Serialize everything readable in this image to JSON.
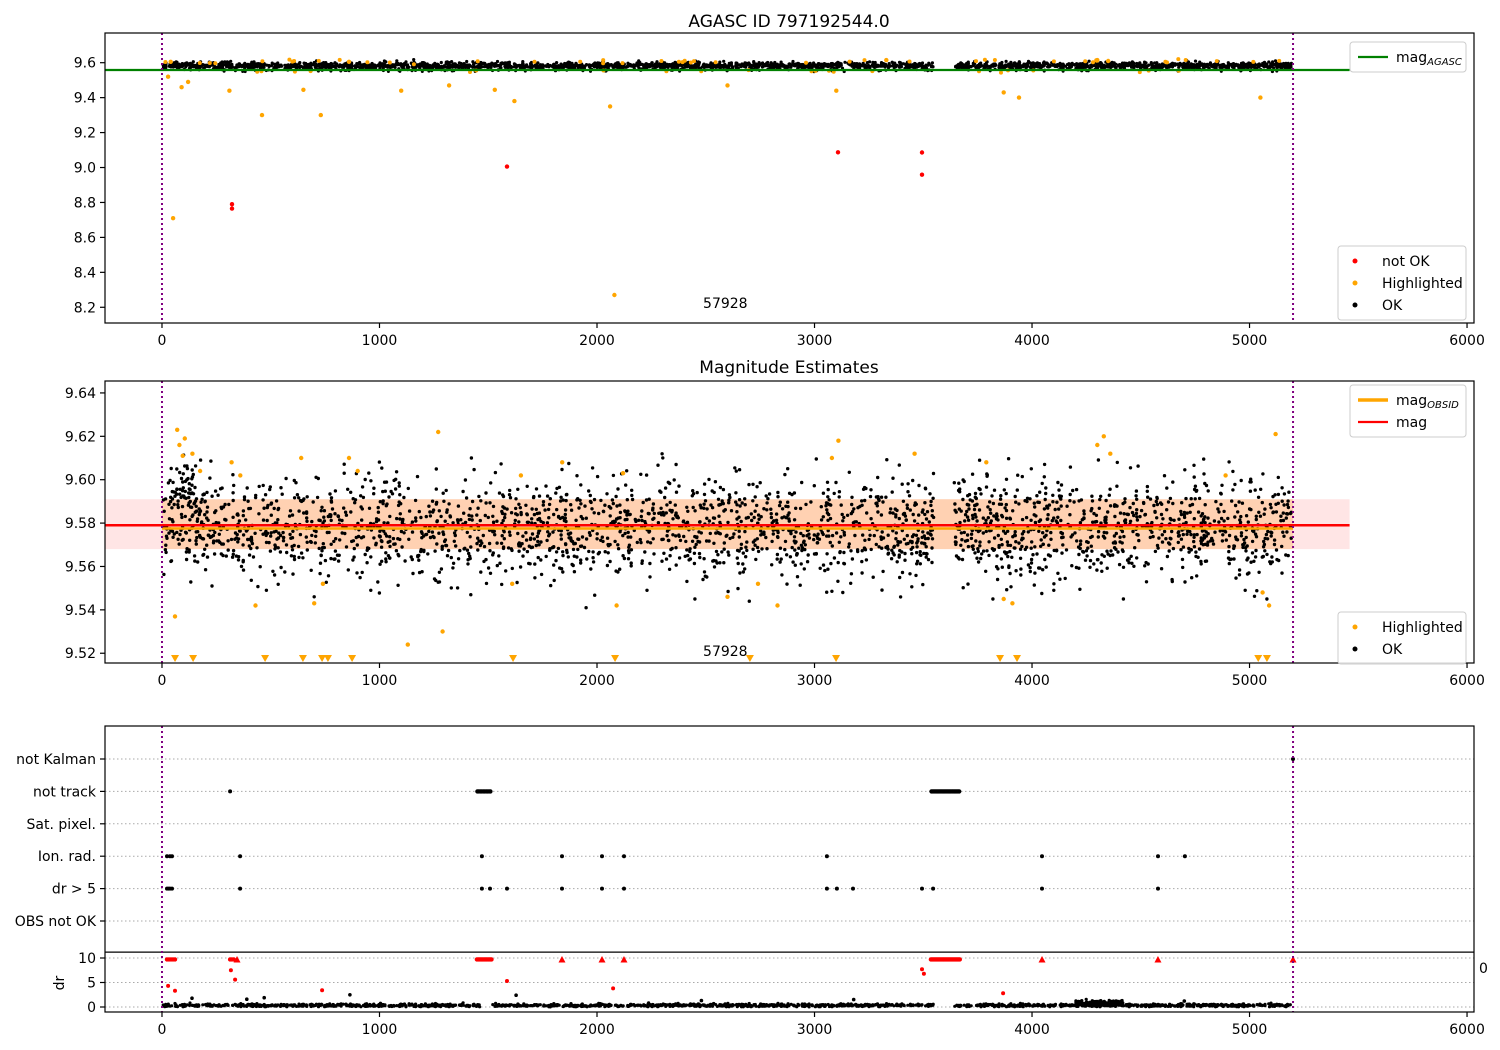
{
  "figure_title": "AGASC ID 797192544.0",
  "colors": {
    "ok": "#000000",
    "highlighted": "#ffa500",
    "not_ok": "#ff0000",
    "mag_agasc_line": "#008000",
    "mag_line": "#ff0000",
    "obsid_line": "#ffa500",
    "err_band_pink": "rgba(255,0,0,0.10)",
    "err_band_salmon": "rgba(255,140,0,0.22)",
    "vline": "#800080",
    "grid": "#aaaaaa",
    "spine": "#000000",
    "legend_border": "#cccccc"
  },
  "chart_data": [
    {
      "type": "scatter",
      "title": "AGASC ID 797192544.0",
      "xlim": [
        -262,
        6032
      ],
      "ylim": [
        8.11,
        9.77
      ],
      "xticks": [
        0,
        1000,
        2000,
        3000,
        4000,
        5000,
        6000
      ],
      "xtick_labels": [
        "0",
        "1000",
        "2000",
        "3000",
        "4000",
        "5000",
        "6000"
      ],
      "yticks": [
        8.2,
        8.4,
        8.6,
        8.8,
        9.0,
        9.2,
        9.4,
        9.6
      ],
      "ytick_labels": [
        "8.2",
        "8.4",
        "8.6",
        "8.8",
        "9.0",
        "9.2",
        "9.4",
        "9.6"
      ],
      "vlines": [
        0,
        5200
      ],
      "hlines": [
        {
          "y": 9.558,
          "x0": -262,
          "x1": 5460,
          "color_key": "mag_agasc_line",
          "width": 2.2
        }
      ],
      "clouds": [
        {
          "ranges": [
            [
              5,
              3548
            ],
            [
              3642,
              5193
            ]
          ],
          "n": 2400,
          "mean": 9.583,
          "sigma": 0.01,
          "clip": [
            9.549,
            9.625
          ],
          "color_key": "ok",
          "r": 1.6
        },
        {
          "ranges": [
            [
              5,
              3548
            ],
            [
              3642,
              5193
            ]
          ],
          "n": 90,
          "mean": 9.5545,
          "sigma": 0.0035,
          "clip": [
            9.545,
            9.562
          ],
          "color_key": "ok",
          "r": 1.5
        },
        {
          "ranges": [
            [
              5,
              3548
            ],
            [
              3642,
              5193
            ]
          ],
          "n": 45,
          "mean": 9.606,
          "sigma": 0.007,
          "clip": [
            9.59,
            9.625
          ],
          "color_key": "highlighted",
          "r": 2.0
        },
        {
          "ranges": [
            [
              5,
              3548
            ],
            [
              3642,
              5193
            ]
          ],
          "n": 22,
          "mean": 9.552,
          "sigma": 0.004,
          "clip": [
            9.542,
            9.561
          ],
          "color_key": "highlighted",
          "r": 2.0
        }
      ],
      "points": [
        {
          "color_key": "highlighted",
          "r": 2.2,
          "xy": [
            [
              28,
              9.52
            ],
            [
              40,
              9.605
            ],
            [
              51,
              8.71
            ],
            [
              90,
              9.46
            ],
            [
              120,
              9.49
            ],
            [
              310,
              9.44
            ],
            [
              460,
              9.3
            ],
            [
              650,
              9.445
            ],
            [
              730,
              9.3
            ],
            [
              860,
              9.605
            ],
            [
              1100,
              9.44
            ],
            [
              1320,
              9.47
            ],
            [
              1530,
              9.445
            ],
            [
              1620,
              9.38
            ],
            [
              2060,
              9.35
            ],
            [
              2080,
              8.27
            ],
            [
              2600,
              9.47
            ],
            [
              3100,
              9.44
            ],
            [
              3330,
              9.615
            ],
            [
              3870,
              9.43
            ],
            [
              3940,
              9.4
            ],
            [
              4300,
              9.615
            ],
            [
              4350,
              9.61
            ],
            [
              5050,
              9.4
            ]
          ]
        },
        {
          "color_key": "not_ok",
          "r": 2.2,
          "xy": [
            [
              322,
              8.79
            ],
            [
              322,
              8.765
            ],
            [
              1586,
              9.005
            ],
            [
              3108,
              9.087
            ],
            [
              3494,
              9.086
            ],
            [
              3494,
              8.959
            ]
          ]
        }
      ],
      "annotation": {
        "text": "57928",
        "x": 2590,
        "y": 8.218
      },
      "legends": [
        {
          "entries": [
            {
              "kind": "line",
              "color_key": "mag_agasc_line",
              "lw": 2.2,
              "main": "mag",
              "sub": "AGASC"
            }
          ]
        },
        {
          "entries": [
            {
              "kind": "dot",
              "color_key": "not_ok",
              "main": "not OK",
              "sub": ""
            },
            {
              "kind": "dot",
              "color_key": "highlighted",
              "main": "Highlighted",
              "sub": ""
            },
            {
              "kind": "dot",
              "color_key": "ok",
              "main": "OK",
              "sub": ""
            }
          ]
        }
      ]
    },
    {
      "type": "scatter",
      "title": "Magnitude Estimates",
      "xlim": [
        -262,
        6032
      ],
      "ylim": [
        9.5155,
        9.6455
      ],
      "xticks": [
        0,
        1000,
        2000,
        3000,
        4000,
        5000,
        6000
      ],
      "xtick_labels": [
        "0",
        "1000",
        "2000",
        "3000",
        "4000",
        "5000",
        "6000"
      ],
      "yticks": [
        9.52,
        9.54,
        9.56,
        9.58,
        9.6,
        9.62,
        9.64
      ],
      "ytick_labels": [
        "9.52",
        "9.54",
        "9.56",
        "9.58",
        "9.60",
        "9.62",
        "9.64"
      ],
      "vlines": [
        0,
        5200
      ],
      "bands": [
        {
          "x0": -262,
          "x1": 5460,
          "y0": 9.568,
          "y1": 9.591,
          "color_key": "err_band_pink"
        },
        {
          "x0": 0,
          "x1": 5200,
          "y0": 9.568,
          "y1": 9.591,
          "color_key": "err_band_salmon"
        }
      ],
      "hlines": [
        {
          "y": 9.5775,
          "x0": 0,
          "x1": 5200,
          "color_key": "obsid_line",
          "width": 2.5
        },
        {
          "y": 9.579,
          "x0": -262,
          "x1": 5460,
          "color_key": "mag_line",
          "width": 2.5
        }
      ],
      "clouds": [
        {
          "ranges": [
            [
              5,
              3548
            ],
            [
              3642,
              5193
            ]
          ],
          "n": 2600,
          "mean": 9.578,
          "sigma": 0.0115,
          "clip": [
            9.5455,
            9.6125
          ],
          "color_key": "ok",
          "r": 1.7
        },
        {
          "ranges": [
            [
              30,
              200
            ]
          ],
          "n": 60,
          "mean": 9.594,
          "sigma": 0.008,
          "clip": [
            9.57,
            9.612
          ],
          "color_key": "ok",
          "r": 1.7
        }
      ],
      "points": [
        {
          "color_key": "ok",
          "r": 1.7,
          "xy": [
            [
              230,
              9.551
            ],
            [
              480,
              9.549
            ],
            [
              700,
              9.546
            ],
            [
              960,
              9.549
            ],
            [
              1420,
              9.547
            ],
            [
              1950,
              9.541
            ],
            [
              2230,
              9.549
            ],
            [
              2450,
              9.545
            ],
            [
              2700,
              9.544
            ],
            [
              3130,
              9.548
            ],
            [
              3820,
              9.545
            ],
            [
              4100,
              9.549
            ],
            [
              4420,
              9.545
            ],
            [
              4980,
              9.549
            ],
            [
              5080,
              9.545
            ]
          ]
        },
        {
          "color_key": "highlighted",
          "r": 2.2,
          "xy": [
            [
              60,
              9.537
            ],
            [
              70,
              9.623
            ],
            [
              80,
              9.616
            ],
            [
              95,
              9.611
            ],
            [
              105,
              9.619
            ],
            [
              140,
              9.612
            ],
            [
              175,
              9.604
            ],
            [
              320,
              9.608
            ],
            [
              360,
              9.602
            ],
            [
              430,
              9.542
            ],
            [
              640,
              9.61
            ],
            [
              700,
              9.543
            ],
            [
              740,
              9.552
            ],
            [
              860,
              9.61
            ],
            [
              900,
              9.604
            ],
            [
              1130,
              9.524
            ],
            [
              1270,
              9.622
            ],
            [
              1290,
              9.53
            ],
            [
              1610,
              9.552
            ],
            [
              1650,
              9.602
            ],
            [
              1840,
              9.608
            ],
            [
              2090,
              9.542
            ],
            [
              2120,
              9.603
            ],
            [
              2600,
              9.546
            ],
            [
              2740,
              9.552
            ],
            [
              2830,
              9.542
            ],
            [
              3080,
              9.61
            ],
            [
              3110,
              9.618
            ],
            [
              3460,
              9.612
            ],
            [
              3790,
              9.608
            ],
            [
              3870,
              9.545
            ],
            [
              3910,
              9.543
            ],
            [
              4300,
              9.616
            ],
            [
              4330,
              9.62
            ],
            [
              4360,
              9.612
            ],
            [
              4890,
              9.602
            ],
            [
              5060,
              9.548
            ],
            [
              5090,
              9.542
            ],
            [
              5120,
              9.621
            ]
          ]
        }
      ],
      "clip_markers": {
        "color_key": "highlighted",
        "xs": [
          60,
          143,
          474,
          648,
          736,
          763,
          874,
          1614,
          2083,
          2703,
          3099,
          3853,
          3931,
          5040,
          5080
        ]
      },
      "annotation": {
        "text": "57928",
        "x": 2590,
        "y": 9.5205
      },
      "legends": [
        {
          "entries": [
            {
              "kind": "line",
              "color_key": "obsid_line",
              "lw": 3.5,
              "main": "mag",
              "sub": "OBSID"
            },
            {
              "kind": "line",
              "color_key": "mag_line",
              "lw": 2.2,
              "main": "mag",
              "sub": ""
            }
          ]
        },
        {
          "entries": [
            {
              "kind": "dot",
              "color_key": "highlighted",
              "main": "Highlighted",
              "sub": ""
            },
            {
              "kind": "dot",
              "color_key": "ok",
              "main": "OK",
              "sub": ""
            }
          ]
        }
      ]
    },
    {
      "type": "scatter",
      "title": "",
      "xlim": [
        -262,
        6032
      ],
      "xticks": [
        0,
        1000,
        2000,
        3000,
        4000,
        5000,
        6000
      ],
      "xtick_labels": [
        "0",
        "1000",
        "2000",
        "3000",
        "4000",
        "5000",
        "6000"
      ],
      "categories": [
        "not Kalman",
        "not track",
        "Sat. pixel.",
        "Ion. rad.",
        "dr > 5",
        "OBS not OK"
      ],
      "dr_ticks": [
        10,
        5,
        0
      ],
      "dr_tick_labels": [
        "10",
        "5",
        "0"
      ],
      "ylabel": "dr",
      "right_axis_label": "0",
      "vlines": [
        0,
        5200
      ],
      "separator_dr": 11.2,
      "flags": [
        {
          "row": 0,
          "singles": [
            5200
          ],
          "clusters": []
        },
        {
          "row": 1,
          "singles": [
            313
          ],
          "clusters": [
            [
              1450,
              1510,
              10
            ],
            [
              3538,
              3665,
              24
            ]
          ]
        },
        {
          "row": 2,
          "singles": [],
          "clusters": []
        },
        {
          "row": 3,
          "singles": [
            23,
            37,
            46,
            359,
            1471,
            1839,
            2023,
            2124,
            3057,
            4046,
            4579,
            4703
          ],
          "clusters": []
        },
        {
          "row": 4,
          "singles": [
            23,
            30,
            37,
            46,
            359,
            1471,
            1508,
            1586,
            1839,
            2023,
            2124,
            3057,
            3103,
            3177,
            3494,
            3545,
            4046,
            4579
          ],
          "clusters": []
        },
        {
          "row": 5,
          "singles": [],
          "clusters": []
        }
      ],
      "dr_red_high": {
        "value": 9.7,
        "clusters": [
          [
            23,
            60,
            5
          ],
          [
            313,
            330,
            3
          ],
          [
            1448,
            1515,
            14
          ],
          [
            3535,
            3668,
            30
          ]
        ],
        "triangles": [
          345,
          1839,
          2023,
          2124,
          4046,
          4579,
          5200
        ]
      },
      "dr_red_points": [
        [
          28,
          4.3
        ],
        [
          60,
          3.3
        ],
        [
          317,
          7.5
        ],
        [
          336,
          5.6
        ],
        [
          736,
          3.4
        ],
        [
          1586,
          5.3
        ],
        [
          2074,
          3.8
        ],
        [
          3494,
          7.7
        ],
        [
          3503,
          6.8
        ],
        [
          3867,
          2.8
        ]
      ],
      "dr_black_points": [
        [
          138,
          1.8
        ],
        [
          390,
          1.6
        ],
        [
          470,
          1.9
        ],
        [
          864,
          2.5
        ],
        [
          1628,
          2.4
        ],
        [
          2480,
          1.3
        ],
        [
          3180,
          1.5
        ],
        [
          4700,
          1.2
        ]
      ],
      "dr_band": {
        "ranges": [
          [
            5,
            1468
          ],
          [
            1520,
            3548
          ],
          [
            3642,
            5193
          ]
        ],
        "n": 1500,
        "mean": 0.32,
        "sigma": 0.16,
        "clip": [
          0.03,
          1.2
        ]
      },
      "dr_bump": {
        "x0": 4200,
        "x1": 4420,
        "n": 160,
        "mean": 0.75,
        "sigma": 0.3,
        "clip": [
          0.1,
          1.8
        ]
      }
    }
  ]
}
